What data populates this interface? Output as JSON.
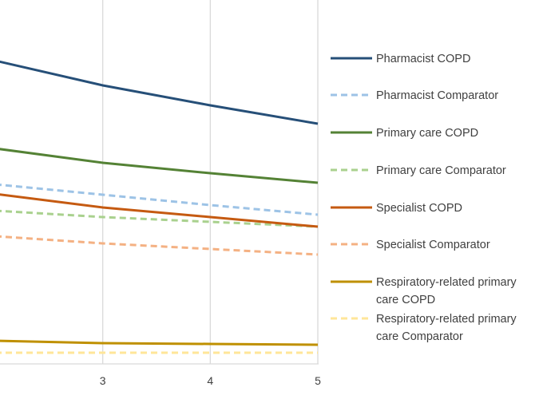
{
  "chart_data": {
    "type": "line",
    "title": "",
    "xlabel": "",
    "ylabel": "",
    "x": [
      2,
      3,
      4,
      5
    ],
    "x_ticks": [
      "3",
      "4",
      "5"
    ],
    "xlim": [
      2,
      5
    ],
    "grid": "vertical",
    "legend_position": "right",
    "series": [
      {
        "name": "Pharmacist COPD",
        "values": [
          76,
          107,
          132,
          155
        ],
        "color": "#264f78",
        "dash": false
      },
      {
        "name": "Pharmacist Comparator",
        "values": [
          231,
          244,
          257,
          269
        ],
        "color": "#9dc3e6",
        "dash": true
      },
      {
        "name": "Primary care COPD",
        "values": [
          186,
          204,
          217,
          229
        ],
        "color": "#548235",
        "dash": false
      },
      {
        "name": "Primary care Comparator",
        "values": [
          264,
          272,
          278,
          284
        ],
        "color": "#a9d18e",
        "dash": true
      },
      {
        "name": "Specialist COPD",
        "values": [
          243,
          260,
          272,
          284
        ],
        "color": "#c55a11",
        "dash": false
      },
      {
        "name": "Specialist Comparator",
        "values": [
          296,
          305,
          312,
          319
        ],
        "color": "#f4b183",
        "dash": true
      },
      {
        "name": "Respiratory-related primary care COPD",
        "values": [
          427,
          430,
          431,
          432
        ],
        "color": "#bf9000",
        "dash": false
      },
      {
        "name": "Respiratory-related primary care Comparator",
        "values": [
          442,
          442,
          442,
          442
        ],
        "color": "#ffe699",
        "dash": true
      }
    ]
  },
  "legend_lines": [
    [
      "Pharmacist COPD"
    ],
    [
      "Pharmacist Comparator"
    ],
    [
      "Primary care COPD"
    ],
    [
      "Primary care Comparator"
    ],
    [
      "Specialist COPD"
    ],
    [
      "Specialist Comparator"
    ],
    [
      "Respiratory-related primary",
      "care COPD"
    ],
    [
      "Respiratory-related primary",
      "care Comparator"
    ]
  ]
}
